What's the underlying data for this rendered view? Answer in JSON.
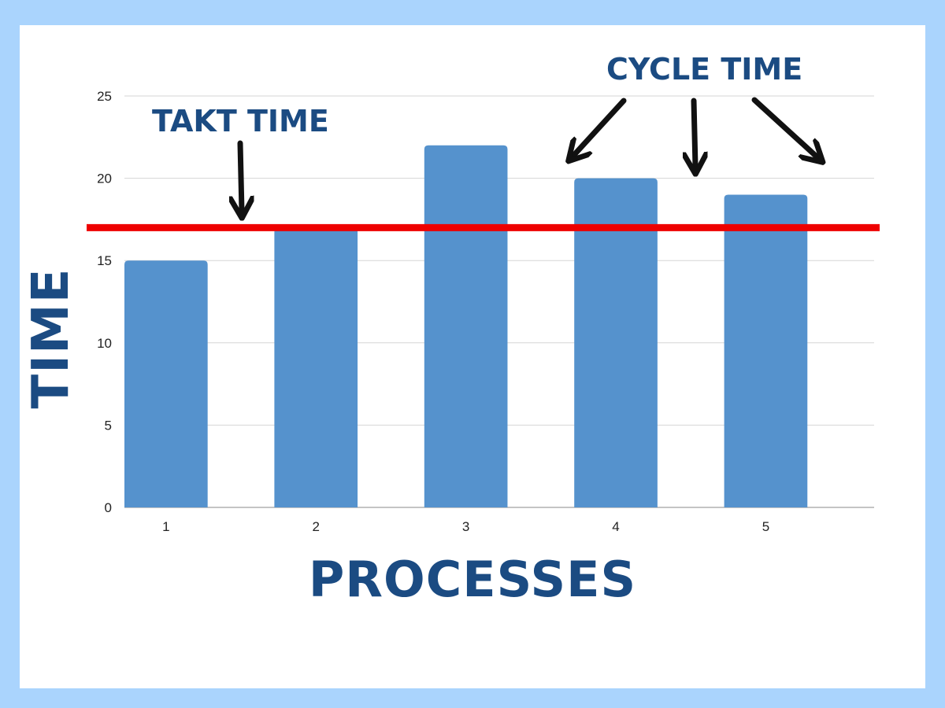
{
  "chart_data": {
    "type": "bar",
    "categories": [
      "1",
      "2",
      "3",
      "4",
      "5"
    ],
    "values": [
      15,
      17,
      22,
      20,
      19
    ],
    "xlabel": "PROCESSES",
    "ylabel": "TIME",
    "ylim": [
      0,
      25
    ],
    "yticks": [
      "0",
      "5",
      "10",
      "15",
      "20",
      "25"
    ],
    "grid": true,
    "bar_color": "#5592cd",
    "takt_line": {
      "value": 17,
      "color": "#ee0000"
    },
    "annotations": {
      "takt": "TAKT TIME",
      "cycle": "CYCLE TIME"
    }
  },
  "colors": {
    "background": "#aad4fd",
    "card": "#ffffff",
    "text": "#1b4b82",
    "arrow": "#111111"
  }
}
